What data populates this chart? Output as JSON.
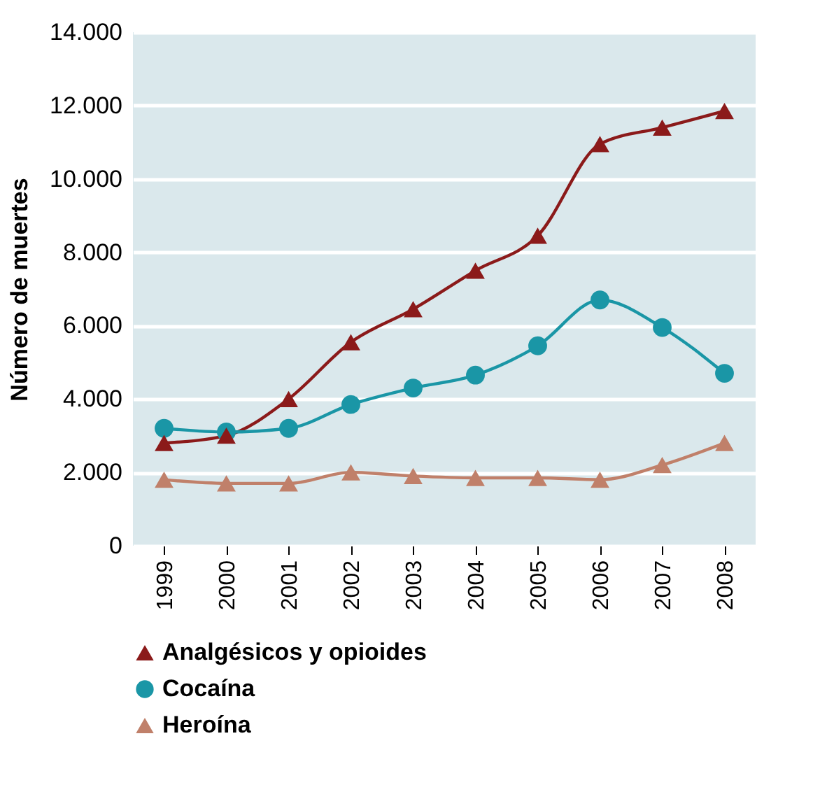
{
  "chart_data": {
    "type": "line",
    "ylabel": "Número de muertes",
    "categories": [
      "1999",
      "2000",
      "2001",
      "2002",
      "2003",
      "2004",
      "2005",
      "2006",
      "2007",
      "2008"
    ],
    "series": [
      {
        "name": "Analgésicos y opioides",
        "color": "#8b1a1a",
        "marker": "triangle",
        "values": [
          2800,
          3000,
          4000,
          5550,
          6450,
          7500,
          8450,
          10950,
          11400,
          11850
        ]
      },
      {
        "name": "Cocaína",
        "color": "#1a96a6",
        "marker": "circle",
        "values": [
          3200,
          3100,
          3200,
          3850,
          4300,
          4650,
          5450,
          6700,
          5950,
          4700
        ]
      },
      {
        "name": "Heroína",
        "color": "#c0806a",
        "marker": "triangle",
        "values": [
          1800,
          1700,
          1700,
          2000,
          1900,
          1850,
          1850,
          1800,
          2200,
          2800
        ]
      }
    ],
    "ylim": [
      0,
      14000
    ],
    "yticks": [
      {
        "value": 0,
        "label": "0"
      },
      {
        "value": 2000,
        "label": "2.000"
      },
      {
        "value": 4000,
        "label": "4.000"
      },
      {
        "value": 6000,
        "label": "6.000"
      },
      {
        "value": 8000,
        "label": "8.000"
      },
      {
        "value": 10000,
        "label": "10.000"
      },
      {
        "value": 12000,
        "label": "12.000"
      },
      {
        "value": 14000,
        "label": "14.000"
      }
    ],
    "grid": "y",
    "legend": "bottom"
  }
}
